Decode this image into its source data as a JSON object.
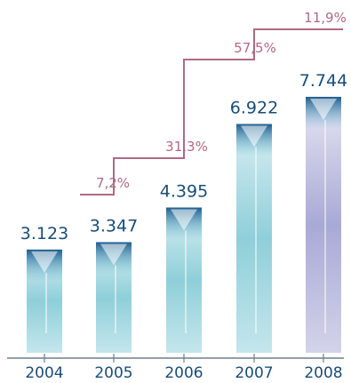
{
  "chart_data": {
    "type": "bar",
    "categories": [
      "2004",
      "2005",
      "2006",
      "2007",
      "2008"
    ],
    "values": [
      3123,
      3347,
      4395,
      6922,
      7744
    ],
    "value_labels": [
      "3.123",
      "3.347",
      "4.395",
      "6.922",
      "7.744"
    ],
    "growth_labels": [
      "7,2%",
      "31,3%",
      "57,5%",
      "11,9%"
    ],
    "ylim": [
      0,
      8200
    ],
    "grid": false,
    "legend": "none",
    "colors": {
      "bar_top": "#1f5d8e",
      "bar_light": "#d6eef2",
      "bar_mid": "#8fcfd9",
      "bar_last_light": "#e6e6f3",
      "bar_last_mid": "#a9a9d6",
      "growth_line": "#b06a82",
      "value_text": "#1a4d78",
      "axis": "#6f7f8f"
    }
  }
}
